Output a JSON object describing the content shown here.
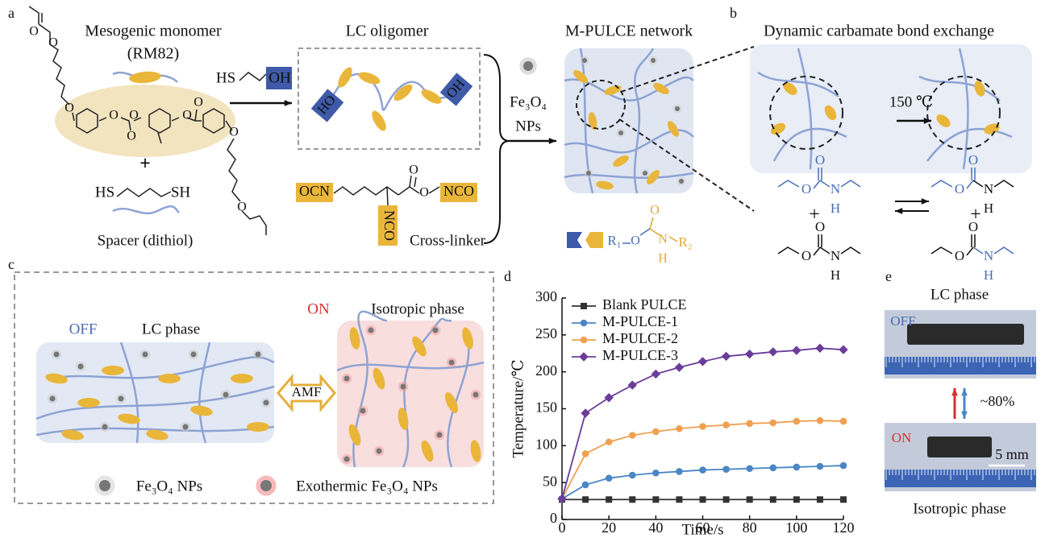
{
  "figure": {
    "panel_labels": [
      "a",
      "b",
      "c",
      "d",
      "e"
    ],
    "a": {
      "monomer_title": "Mesogenic monomer",
      "monomer_name": "(RM82)",
      "monomer_atoms": [
        "O",
        "O",
        "O",
        "O",
        "O",
        "O",
        "O",
        "O",
        "O",
        "O"
      ],
      "plus": "+",
      "dithiol": [
        "HS",
        "SH"
      ],
      "spacer": "Spacer (dithiol)",
      "reagent": [
        "HS",
        "OH"
      ],
      "oligomer_title": "LC oligomer",
      "oligomer_ends": [
        "HO",
        "OH"
      ],
      "crosslinker_groups": [
        "OCN",
        "NCO",
        "NCO"
      ],
      "crosslinker_atoms": [
        "O",
        "O"
      ],
      "crosslinker": "Cross-linker",
      "nps": [
        "Fe₃O₄",
        "NPs"
      ],
      "network_title": "M-PULCE network",
      "carbamate_key": [
        "R₁",
        "O",
        "O",
        "N",
        "H",
        "R₂"
      ]
    },
    "b": {
      "title": "Dynamic carbamate bond exchange",
      "condition": "150 ℃",
      "carbamates": [
        [
          "O",
          "O",
          "N",
          "H"
        ],
        [
          "O",
          "O",
          "N",
          "H"
        ],
        [
          "O",
          "O",
          "N",
          "H"
        ],
        [
          "O",
          "O",
          "N",
          "H"
        ]
      ],
      "plus": [
        "+",
        "+"
      ]
    },
    "c": {
      "off": "OFF",
      "lc_phase": "LC phase",
      "on": "ON",
      "iso_phase": "Isotropic phase",
      "amf": "AMF",
      "legend": [
        "Fe₃O₄ NPs",
        "Exothermic Fe₃O₄ NPs"
      ]
    },
    "e": {
      "top_title": "LC phase",
      "off": "OFF",
      "strain": "~80%",
      "on": "ON",
      "scale": "5 mm",
      "bottom_title": "Isotropic phase"
    }
  },
  "chart_data": {
    "type": "line",
    "x_label": "Time/s",
    "y_label": "Temperature/℃",
    "x": [
      0,
      10,
      20,
      30,
      40,
      50,
      60,
      70,
      80,
      90,
      100,
      110,
      120
    ],
    "xlim": [
      0,
      120
    ],
    "xticks": [
      0,
      20,
      40,
      60,
      80,
      100,
      120
    ],
    "ylim": [
      0,
      300
    ],
    "yticks": [
      0,
      50,
      100,
      150,
      200,
      250,
      300
    ],
    "legend": "upper left",
    "series": [
      {
        "name": "Blank PULCE",
        "color": "#333333",
        "marker": "square",
        "values": [
          27,
          27,
          27,
          27,
          27,
          27,
          27,
          27,
          27,
          27,
          27,
          27,
          27
        ]
      },
      {
        "name": "M-PULCE-1",
        "color": "#4a86c5",
        "marker": "circle",
        "values": [
          28,
          47,
          56,
          60,
          63,
          65,
          67,
          68,
          69,
          70,
          71,
          72,
          73
        ]
      },
      {
        "name": "M-PULCE-2",
        "color": "#f0a050",
        "marker": "circle",
        "values": [
          28,
          89,
          105,
          114,
          119,
          123,
          126,
          128,
          130,
          131,
          133,
          134,
          133
        ]
      },
      {
        "name": "M-PULCE-3",
        "color": "#6a3d9a",
        "marker": "diamond",
        "values": [
          28,
          144,
          165,
          182,
          197,
          206,
          214,
          221,
          224,
          227,
          229,
          232,
          230
        ]
      }
    ]
  }
}
